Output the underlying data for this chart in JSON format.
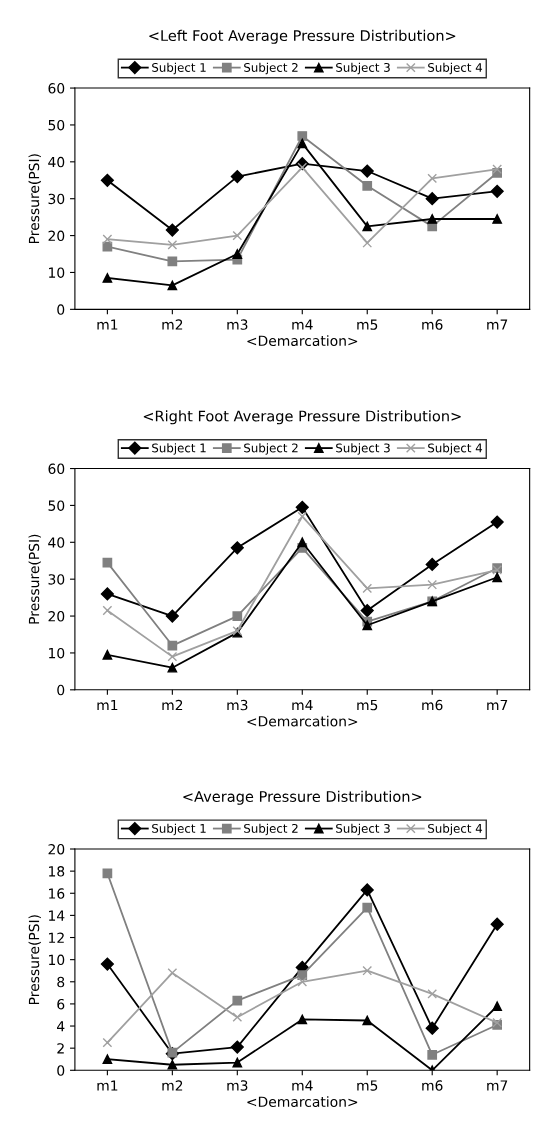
{
  "chart_data": [
    {
      "type": "line",
      "title": "<Left Foot Average Pressure Distribution>",
      "xlabel": "<Demarcation>",
      "ylabel": "Pressure(PSI)",
      "categories": [
        "m1",
        "m2",
        "m3",
        "m4",
        "m5",
        "m6",
        "m7"
      ],
      "ylim": [
        0,
        60
      ],
      "yticks": [
        0,
        10,
        20,
        30,
        40,
        50,
        60
      ],
      "grid": false,
      "legend": "top",
      "series": [
        {
          "name": "Subject 1",
          "color": "#000000",
          "marker": "diamond",
          "values": [
            35,
            21.5,
            36,
            39.5,
            37.5,
            30,
            32
          ]
        },
        {
          "name": "Subject 2",
          "color": "#808080",
          "marker": "square",
          "values": [
            17,
            13,
            13.5,
            47,
            33.5,
            22.5,
            37
          ]
        },
        {
          "name": "Subject 3",
          "color": "#000000",
          "marker": "triangle",
          "values": [
            8.5,
            6.5,
            15,
            45,
            22.5,
            24.5,
            24.5
          ]
        },
        {
          "name": "Subject 4",
          "color": "#a0a0a0",
          "marker": "cross",
          "values": [
            19,
            17.5,
            20,
            38.5,
            18,
            35.5,
            38
          ]
        }
      ]
    },
    {
      "type": "line",
      "title": "<Right Foot Average Pressure Distribution>",
      "xlabel": "<Demarcation>",
      "ylabel": "Pressure(PSI)",
      "categories": [
        "m1",
        "m2",
        "m3",
        "m4",
        "m5",
        "m6",
        "m7"
      ],
      "ylim": [
        0,
        60
      ],
      "yticks": [
        0,
        10,
        20,
        30,
        40,
        50,
        60
      ],
      "grid": false,
      "legend": "top",
      "series": [
        {
          "name": "Subject 1",
          "color": "#000000",
          "marker": "diamond",
          "values": [
            26,
            20,
            38.5,
            49.5,
            21.5,
            34,
            45.5
          ]
        },
        {
          "name": "Subject 2",
          "color": "#808080",
          "marker": "square",
          "values": [
            34.5,
            12,
            20,
            38.5,
            18.5,
            24,
            33
          ]
        },
        {
          "name": "Subject 3",
          "color": "#000000",
          "marker": "triangle",
          "values": [
            9.5,
            6,
            15.5,
            40,
            17.5,
            24,
            30.5
          ]
        },
        {
          "name": "Subject 4",
          "color": "#a0a0a0",
          "marker": "cross",
          "values": [
            21.5,
            9,
            16,
            47,
            27.5,
            28.5,
            32.5
          ]
        }
      ]
    },
    {
      "type": "line",
      "title": "<Average Pressure Distribution>",
      "xlabel": "<Demarcation>",
      "ylabel": "Pressure(PSI)",
      "categories": [
        "m1",
        "m2",
        "m3",
        "m4",
        "m5",
        "m6",
        "m7"
      ],
      "ylim": [
        0,
        20
      ],
      "yticks": [
        0,
        2,
        4,
        6,
        8,
        10,
        12,
        14,
        16,
        18,
        20
      ],
      "grid": false,
      "legend": "top",
      "series": [
        {
          "name": "Subject 1",
          "color": "#000000",
          "marker": "diamond",
          "values": [
            9.6,
            1.5,
            2.1,
            9.3,
            16.3,
            3.8,
            13.2
          ]
        },
        {
          "name": "Subject 2",
          "color": "#808080",
          "marker": "square",
          "values": [
            17.8,
            1.6,
            6.3,
            8.6,
            14.7,
            1.4,
            4.1
          ]
        },
        {
          "name": "Subject 3",
          "color": "#000000",
          "marker": "triangle",
          "values": [
            1.0,
            0.5,
            0.7,
            4.6,
            4.5,
            0.0,
            5.8
          ]
        },
        {
          "name": "Subject 4",
          "color": "#a0a0a0",
          "marker": "cross",
          "values": [
            2.5,
            8.8,
            4.8,
            8.0,
            9.0,
            6.9,
            4.3
          ]
        }
      ]
    }
  ]
}
